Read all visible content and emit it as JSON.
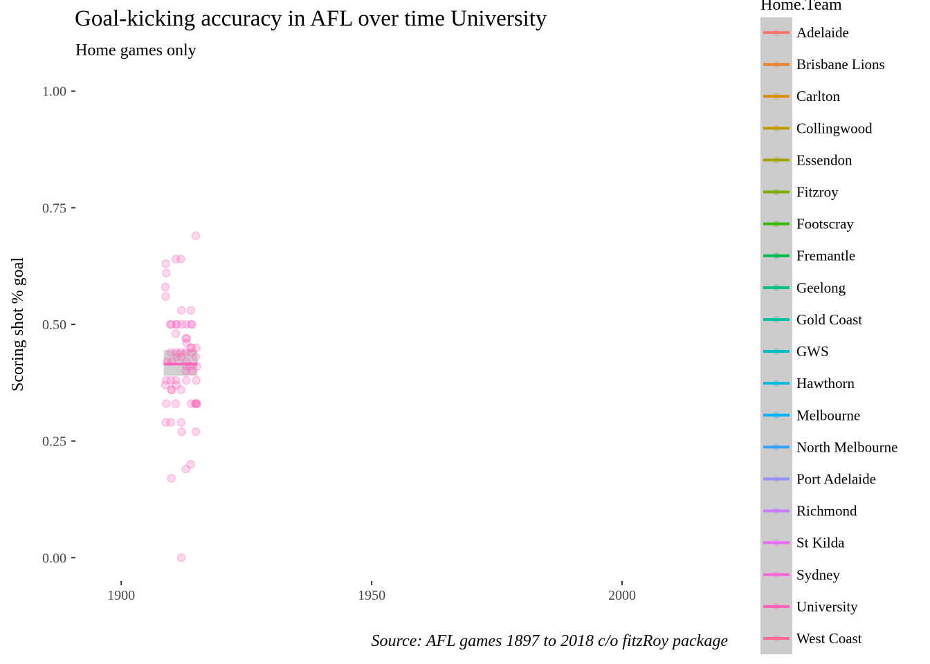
{
  "chart_data": {
    "type": "scatter",
    "title": "Goal-kicking accuracy in AFL over time University",
    "subtitle": "Home games only",
    "xlabel": "",
    "ylabel": "Scoring shot % goal",
    "caption": "Source: AFL games 1897 to 2018 c/o fitzRoy package",
    "xlim": [
      1891,
      2025
    ],
    "ylim": [
      -0.05,
      1.05
    ],
    "x_ticks": [
      1900,
      1950,
      2000
    ],
    "x_tick_labels": [
      "1900",
      "1950",
      "2000"
    ],
    "y_ticks": [
      0,
      0.25,
      0.5,
      0.75,
      1.0
    ],
    "y_tick_labels": [
      "0.00",
      "0.25",
      "0.50",
      "0.75",
      "1.00"
    ],
    "grid": false,
    "legend": {
      "title": "Home.Team",
      "position": "right",
      "entries": [
        {
          "label": "Adelaide",
          "color": "#F8766D"
        },
        {
          "label": "Brisbane Lions",
          "color": "#EA8331"
        },
        {
          "label": "Carlton",
          "color": "#D89000"
        },
        {
          "label": "Collingwood",
          "color": "#C09B00"
        },
        {
          "label": "Essendon",
          "color": "#A3A500"
        },
        {
          "label": "Fitzroy",
          "color": "#7CAE00"
        },
        {
          "label": "Footscray",
          "color": "#39B600"
        },
        {
          "label": "Fremantle",
          "color": "#00BB4E"
        },
        {
          "label": "Geelong",
          "color": "#00BF7D"
        },
        {
          "label": "Gold Coast",
          "color": "#00C1A3"
        },
        {
          "label": "GWS",
          "color": "#00BFC4"
        },
        {
          "label": "Hawthorn",
          "color": "#00BAE0"
        },
        {
          "label": "Melbourne",
          "color": "#00B0F6"
        },
        {
          "label": "North Melbourne",
          "color": "#35A2FF"
        },
        {
          "label": "Port Adelaide",
          "color": "#9590FF"
        },
        {
          "label": "Richmond",
          "color": "#C77CFF"
        },
        {
          "label": "St Kilda",
          "color": "#E76BF3"
        },
        {
          "label": "Sydney",
          "color": "#FA62DB"
        },
        {
          "label": "University",
          "color": "#FF62BC"
        },
        {
          "label": "West Coast",
          "color": "#FF6C91"
        }
      ]
    },
    "series": [
      {
        "team": "University",
        "color": "#FF62BC",
        "points": [
          [
            1908.9,
            0.63
          ],
          [
            1909.0,
            0.61
          ],
          [
            1908.8,
            0.58
          ],
          [
            1908.9,
            0.56
          ],
          [
            1909.1,
            0.42
          ],
          [
            1909.0,
            0.38
          ],
          [
            1908.8,
            0.37
          ],
          [
            1909.0,
            0.33
          ],
          [
            1908.9,
            0.29
          ],
          [
            1909.8,
            0.5
          ],
          [
            1910.0,
            0.5
          ],
          [
            1909.9,
            0.44
          ],
          [
            1910.1,
            0.42
          ],
          [
            1909.9,
            0.38
          ],
          [
            1910.0,
            0.36
          ],
          [
            1910.1,
            0.36
          ],
          [
            1909.9,
            0.29
          ],
          [
            1910.0,
            0.17
          ],
          [
            1910.9,
            0.64
          ],
          [
            1911.0,
            0.5
          ],
          [
            1911.1,
            0.5
          ],
          [
            1910.9,
            0.48
          ],
          [
            1911.0,
            0.44
          ],
          [
            1911.1,
            0.43
          ],
          [
            1910.9,
            0.38
          ],
          [
            1911.0,
            0.37
          ],
          [
            1910.9,
            0.33
          ],
          [
            1911.9,
            0.64
          ],
          [
            1912.0,
            0.53
          ],
          [
            1912.1,
            0.5
          ],
          [
            1911.9,
            0.44
          ],
          [
            1912.0,
            0.43
          ],
          [
            1911.9,
            0.36
          ],
          [
            1912.0,
            0.29
          ],
          [
            1912.1,
            0.27
          ],
          [
            1912.0,
            0.0
          ],
          [
            1913.0,
            0.5
          ],
          [
            1912.9,
            0.47
          ],
          [
            1913.1,
            0.47
          ],
          [
            1913.0,
            0.46
          ],
          [
            1912.9,
            0.44
          ],
          [
            1913.0,
            0.42
          ],
          [
            1913.1,
            0.41
          ],
          [
            1912.9,
            0.4
          ],
          [
            1913.0,
            0.38
          ],
          [
            1912.9,
            0.19
          ],
          [
            1913.9,
            0.53
          ],
          [
            1914.0,
            0.5
          ],
          [
            1914.1,
            0.5
          ],
          [
            1913.9,
            0.45
          ],
          [
            1914.1,
            0.45
          ],
          [
            1914.0,
            0.44
          ],
          [
            1913.9,
            0.41
          ],
          [
            1914.1,
            0.4
          ],
          [
            1914.0,
            0.33
          ],
          [
            1913.9,
            0.2
          ],
          [
            1914.9,
            0.69
          ],
          [
            1915.0,
            0.45
          ],
          [
            1914.9,
            0.43
          ],
          [
            1915.1,
            0.41
          ],
          [
            1915.0,
            0.38
          ],
          [
            1914.8,
            0.33
          ],
          [
            1914.9,
            0.33
          ],
          [
            1915.0,
            0.33
          ],
          [
            1915.1,
            0.33
          ],
          [
            1914.9,
            0.27
          ]
        ],
        "trend": {
          "x": [
            1908.5,
            1915.2
          ],
          "y": [
            0.415,
            0.415
          ],
          "ci_low": 0.39,
          "ci_high": 0.445
        }
      }
    ]
  }
}
